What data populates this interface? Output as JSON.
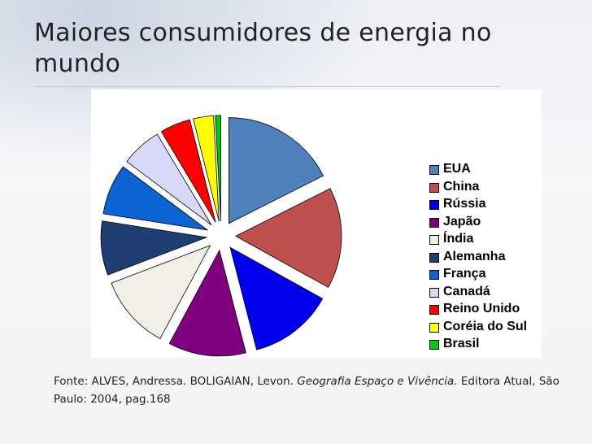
{
  "slide": {
    "title": "Maiores consumidores de energia no mundo",
    "source": {
      "prefix": "Fonte: ALVES, Andressa. BOLIGAIAN, Levon. ",
      "book_title": "Geografia Espaço e Vivência.",
      "suffix": " Editora Atual, São Paulo: 2004, pag.168"
    }
  },
  "chart_data": {
    "type": "pie",
    "exploded": true,
    "legend_position": "right",
    "title": "",
    "slices": [
      {
        "label": "EUA",
        "value": 17.0,
        "color": "#4f81bd"
      },
      {
        "label": "China",
        "value": 15.0,
        "color": "#c0504d"
      },
      {
        "label": "Rússia",
        "value": 12.5,
        "color": "#0000ee"
      },
      {
        "label": "Japão",
        "value": 11.5,
        "color": "#800080"
      },
      {
        "label": "Índia",
        "value": 11.0,
        "color": "#f2f0e6"
      },
      {
        "label": "Alemanha",
        "value": 8.0,
        "color": "#1f3f73"
      },
      {
        "label": "França",
        "value": 7.5,
        "color": "#0b63d4"
      },
      {
        "label": "Canadá",
        "value": 6.0,
        "color": "#d8d8f8"
      },
      {
        "label": "Reino Unido",
        "value": 4.5,
        "color": "#ff0000"
      },
      {
        "label": "Coréia do Sul",
        "value": 3.0,
        "color": "#ffff00"
      },
      {
        "label": "Brasil",
        "value": 0.8,
        "color": "#00cc00"
      }
    ]
  }
}
